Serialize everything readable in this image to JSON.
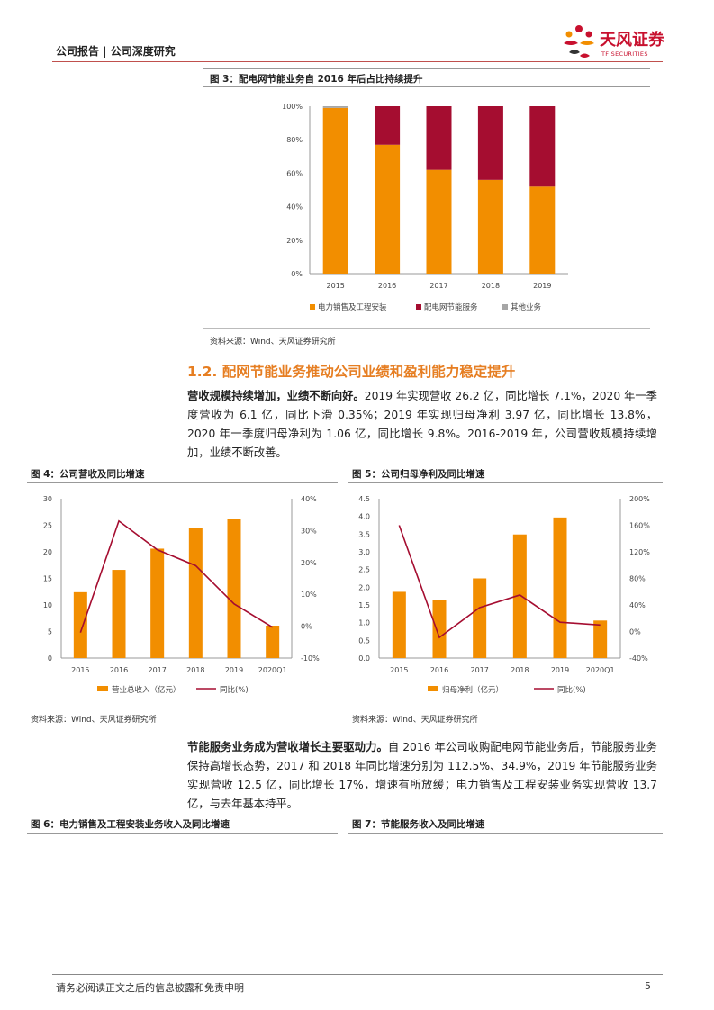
{
  "header": {
    "title": "公司报告 | 公司深度研究",
    "logo_text": "天风证券",
    "logo_sub": "TF SECURITIES"
  },
  "figure3": {
    "title": "图 3：配电网节能业务自 2016 年后占比持续提升",
    "source": "资料来源：Wind、天风证券研究所",
    "chart_data": {
      "type": "bar",
      "stacked": true,
      "categories": [
        "2015",
        "2016",
        "2017",
        "2018",
        "2019"
      ],
      "series": [
        {
          "name": "电力销售及工程安装",
          "color": "#f28e00",
          "values": [
            99,
            77,
            62,
            56,
            52
          ]
        },
        {
          "name": "配电网节能服务",
          "color": "#a50d30",
          "values": [
            0,
            23,
            38,
            44,
            48
          ]
        },
        {
          "name": "其他业务",
          "color": "#a6a6a6",
          "values": [
            1,
            0,
            0,
            0,
            0
          ]
        }
      ],
      "yticks": [
        "0%",
        "20%",
        "40%",
        "60%",
        "80%",
        "100%"
      ],
      "ylim": [
        0,
        100
      ],
      "legend": "bottom"
    }
  },
  "section": {
    "title": "1.2. 配网节能业务推动公司业绩和盈利能力稳定提升"
  },
  "para1": {
    "bold": "营收规模持续增加，业绩不断向好。",
    "text": "2019 年实现营收 26.2 亿，同比增长 7.1%，2020 年一季度营收为 6.1 亿，同比下滑 0.35%；2019 年实现归母净利 3.97 亿，同比增长 13.8%，2020 年一季度归母净利为 1.06 亿，同比增长 9.8%。2016-2019 年，公司营收规模持续增加，业绩不断改善。"
  },
  "figure4": {
    "title": "图 4：公司营收及同比增速",
    "source": "资料来源：Wind、天风证券研究所",
    "chart_data": {
      "type": "bar+line",
      "categories": [
        "2015",
        "2016",
        "2017",
        "2018",
        "2019",
        "2020Q1"
      ],
      "bar": {
        "name": "营业总收入（亿元）",
        "color": "#f28e00",
        "values": [
          12.4,
          16.6,
          20.6,
          24.5,
          26.2,
          6.1
        ]
      },
      "line": {
        "name": "同比(%)",
        "color": "#a50d30",
        "values": [
          -2,
          33,
          24,
          19,
          7,
          -0.35
        ]
      },
      "yleft": {
        "ticks": [
          "0",
          "5",
          "10",
          "15",
          "20",
          "25",
          "30"
        ],
        "ylim": [
          0,
          30
        ]
      },
      "yright": {
        "ticks": [
          "-10%",
          "0%",
          "10%",
          "20%",
          "30%",
          "40%"
        ],
        "ylim": [
          -10,
          40
        ]
      },
      "legend": "bottom"
    }
  },
  "figure5": {
    "title": "图 5：公司归母净利及同比增速",
    "source": "资料来源：Wind、天风证券研究所",
    "chart_data": {
      "type": "bar+line",
      "categories": [
        "2015",
        "2016",
        "2017",
        "2018",
        "2019",
        "2020Q1"
      ],
      "bar": {
        "name": "归母净利（亿元）",
        "color": "#f28e00",
        "values": [
          1.87,
          1.65,
          2.25,
          3.49,
          3.97,
          1.06
        ]
      },
      "line": {
        "name": "同比(%)",
        "color": "#a50d30",
        "values": [
          160,
          -9,
          36,
          55,
          14,
          9.8
        ]
      },
      "yleft": {
        "ticks": [
          "0.0",
          "0.5",
          "1.0",
          "1.5",
          "2.0",
          "2.5",
          "3.0",
          "3.5",
          "4.0",
          "4.5"
        ],
        "ylim": [
          0,
          4.5
        ]
      },
      "yright": {
        "ticks": [
          "-40%",
          "0%",
          "40%",
          "80%",
          "120%",
          "160%",
          "200%"
        ],
        "ylim": [
          -40,
          200
        ]
      },
      "legend": "bottom"
    }
  },
  "para2": {
    "bold": "节能服务业务成为营收增长主要驱动力。",
    "text": "自 2016 年公司收购配电网节能业务后，节能服务业务保持高增长态势，2017 和 2018 年同比增速分别为 112.5%、34.9%，2019 年节能服务业务实现营收 12.5 亿，同比增长 17%，增速有所放缓；电力销售及工程安装业务实现营收 13.7 亿，与去年基本持平。"
  },
  "figure6": {
    "title": "图 6：电力销售及工程安装业务收入及同比增速"
  },
  "figure7": {
    "title": "图 7：节能服务收入及同比增速"
  },
  "footer": {
    "disclaimer": "请务必阅读正文之后的信息披露和免责申明",
    "page": "5"
  }
}
